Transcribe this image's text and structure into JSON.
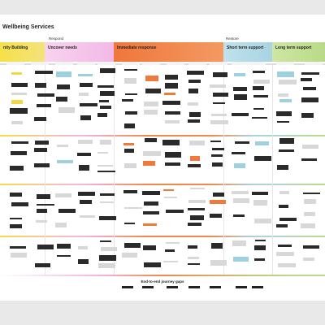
{
  "header": {
    "title": "Wellbeing Services"
  },
  "stages": [
    {
      "label": "Respond"
    },
    {
      "label": "Restore"
    }
  ],
  "phases": [
    {
      "title": "nity Building"
    },
    {
      "title": "Uncover needs"
    },
    {
      "title": "Immediate response"
    },
    {
      "title": "Short term support"
    },
    {
      "title": "Long term support"
    }
  ],
  "footer": {
    "title": "End-to-end journey gaps"
  }
}
